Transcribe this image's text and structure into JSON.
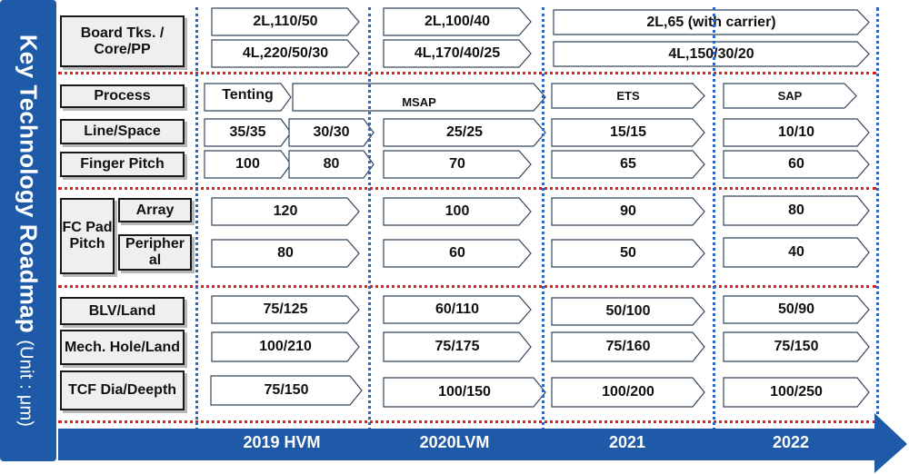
{
  "sidebar": {
    "title": "Key Technology Roadmap",
    "unit": "(Unit : μm)"
  },
  "rows": {
    "board": "Board Tks. / Core/PP",
    "process": "Process",
    "line_space": "Line/Space",
    "finger_pitch": "Finger Pitch",
    "fc_pad_pitch": "FC Pad Pitch",
    "array": "Array",
    "peripheral": "Peripher al",
    "blv_land": "BLV/Land",
    "mech_hole": "Mech. Hole/Land",
    "tcf": "TCF Dia/Deepth"
  },
  "years": [
    "2019 HVM",
    "2020LVM",
    "2021",
    "2022"
  ],
  "cells": {
    "board_2l": [
      "2L,110/50",
      "2L,100/40",
      "2L,65  (with carrier)"
    ],
    "board_4l": [
      "4L,220/50/30",
      "4L,170/40/25",
      "4L,150/30/20"
    ],
    "process": [
      "Tenting",
      "MSAP",
      "ETS",
      "SAP"
    ],
    "line_space": [
      "35/35",
      "30/30",
      "25/25",
      "15/15",
      "10/10"
    ],
    "finger_pitch": [
      "100",
      "80",
      "70",
      "65",
      "60"
    ],
    "array": [
      "120",
      "100",
      "90",
      "80"
    ],
    "peripheral": [
      "80",
      "60",
      "50",
      "40"
    ],
    "blv_land": [
      "75/125",
      "60/110",
      "50/100",
      "50/90"
    ],
    "mech_hole": [
      "100/210",
      "75/175",
      "75/160",
      "75/150"
    ],
    "tcf": [
      "75/150",
      "100/150",
      "100/200",
      "100/250"
    ]
  },
  "colors": {
    "sidebar": "#1f5aa8",
    "year_bar": "#1f5aa8",
    "vertical_guides": "#2a64c4",
    "section_dividers": "#e02020"
  }
}
